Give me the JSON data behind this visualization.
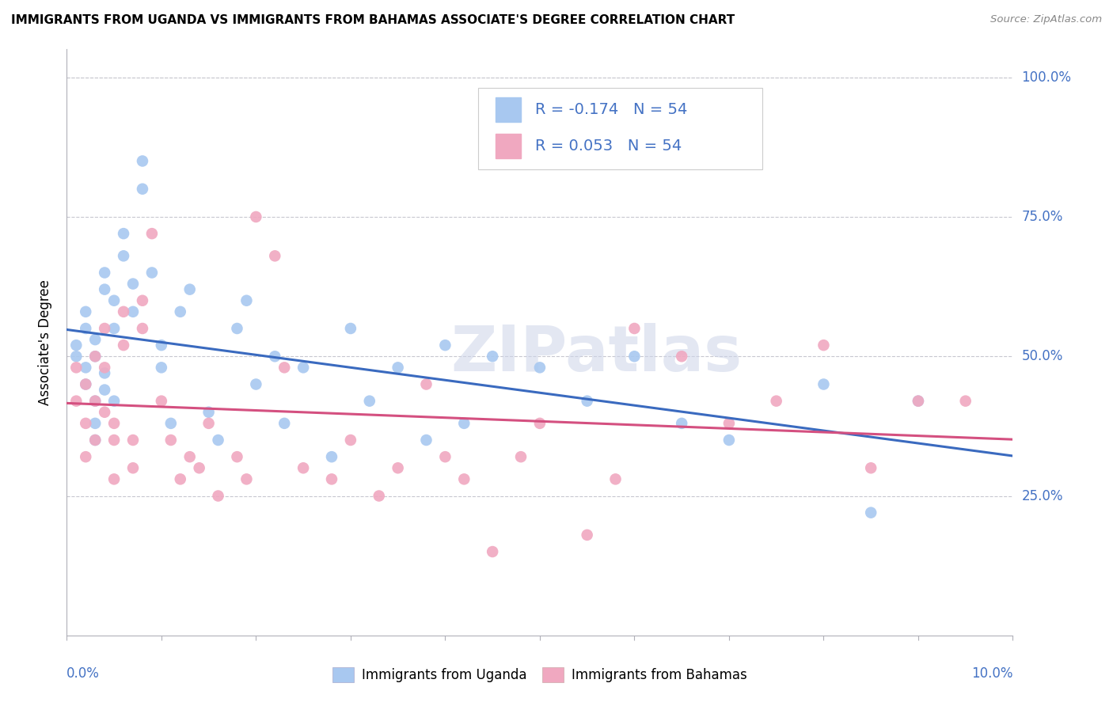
{
  "title": "IMMIGRANTS FROM UGANDA VS IMMIGRANTS FROM BAHAMAS ASSOCIATE'S DEGREE CORRELATION CHART",
  "source": "Source: ZipAtlas.com",
  "ylabel": "Associate's Degree",
  "xlim": [
    0.0,
    0.1
  ],
  "ylim": [
    0.0,
    1.05
  ],
  "yticks": [
    0.0,
    0.25,
    0.5,
    0.75,
    1.0
  ],
  "ytick_labels": [
    "",
    "25.0%",
    "50.0%",
    "75.0%",
    "100.0%"
  ],
  "legend_r_uganda": "-0.174",
  "legend_n_uganda": "54",
  "legend_r_bahamas": "0.053",
  "legend_n_bahamas": "54",
  "color_uganda": "#a8c8f0",
  "color_bahamas": "#f0a8c0",
  "color_uganda_line": "#3a6abf",
  "color_bahamas_line": "#d45080",
  "color_text_blue": "#4472c4",
  "color_grid": "#c8c8d0",
  "watermark_color": "#ccd4e8",
  "uganda_x": [
    0.001,
    0.001,
    0.002,
    0.002,
    0.002,
    0.002,
    0.003,
    0.003,
    0.003,
    0.003,
    0.003,
    0.004,
    0.004,
    0.004,
    0.004,
    0.005,
    0.005,
    0.005,
    0.006,
    0.006,
    0.007,
    0.007,
    0.008,
    0.008,
    0.009,
    0.01,
    0.01,
    0.011,
    0.012,
    0.013,
    0.015,
    0.016,
    0.018,
    0.019,
    0.02,
    0.022,
    0.023,
    0.025,
    0.028,
    0.03,
    0.032,
    0.035,
    0.038,
    0.04,
    0.042,
    0.045,
    0.05,
    0.055,
    0.06,
    0.065,
    0.07,
    0.08,
    0.085,
    0.09
  ],
  "uganda_y": [
    0.5,
    0.52,
    0.48,
    0.55,
    0.58,
    0.45,
    0.42,
    0.5,
    0.53,
    0.38,
    0.35,
    0.62,
    0.65,
    0.44,
    0.47,
    0.6,
    0.55,
    0.42,
    0.68,
    0.72,
    0.58,
    0.63,
    0.8,
    0.85,
    0.65,
    0.52,
    0.48,
    0.38,
    0.58,
    0.62,
    0.4,
    0.35,
    0.55,
    0.6,
    0.45,
    0.5,
    0.38,
    0.48,
    0.32,
    0.55,
    0.42,
    0.48,
    0.35,
    0.52,
    0.38,
    0.5,
    0.48,
    0.42,
    0.5,
    0.38,
    0.35,
    0.45,
    0.22,
    0.42
  ],
  "bahamas_x": [
    0.001,
    0.001,
    0.002,
    0.002,
    0.002,
    0.003,
    0.003,
    0.003,
    0.004,
    0.004,
    0.004,
    0.005,
    0.005,
    0.005,
    0.006,
    0.006,
    0.007,
    0.007,
    0.008,
    0.008,
    0.009,
    0.01,
    0.011,
    0.012,
    0.013,
    0.014,
    0.015,
    0.016,
    0.018,
    0.019,
    0.02,
    0.022,
    0.023,
    0.025,
    0.028,
    0.03,
    0.033,
    0.035,
    0.038,
    0.04,
    0.042,
    0.045,
    0.048,
    0.05,
    0.055,
    0.058,
    0.06,
    0.065,
    0.07,
    0.075,
    0.08,
    0.085,
    0.09,
    0.095
  ],
  "bahamas_y": [
    0.48,
    0.42,
    0.45,
    0.38,
    0.32,
    0.5,
    0.42,
    0.35,
    0.55,
    0.48,
    0.4,
    0.38,
    0.35,
    0.28,
    0.58,
    0.52,
    0.3,
    0.35,
    0.6,
    0.55,
    0.72,
    0.42,
    0.35,
    0.28,
    0.32,
    0.3,
    0.38,
    0.25,
    0.32,
    0.28,
    0.75,
    0.68,
    0.48,
    0.3,
    0.28,
    0.35,
    0.25,
    0.3,
    0.45,
    0.32,
    0.28,
    0.15,
    0.32,
    0.38,
    0.18,
    0.28,
    0.55,
    0.5,
    0.38,
    0.42,
    0.52,
    0.3,
    0.42,
    0.42
  ]
}
